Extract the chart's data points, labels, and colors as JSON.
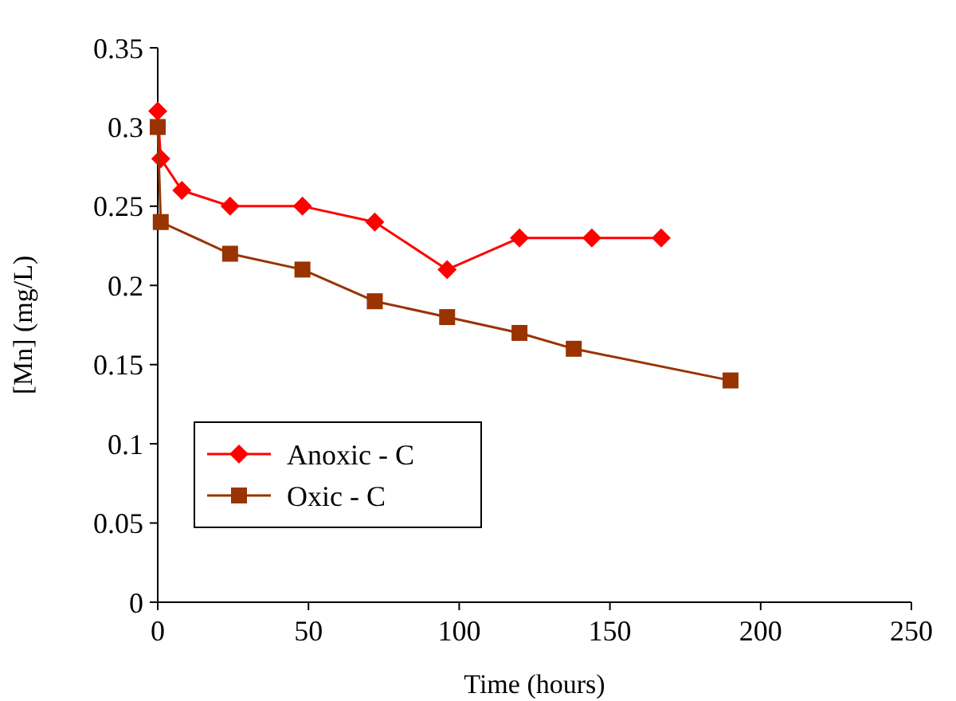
{
  "chart_data": {
    "type": "line",
    "xlabel": "Time (hours)",
    "ylabel": "[Mn] (mg/L)",
    "xlim": [
      0,
      250
    ],
    "xticks": [
      0,
      50,
      100,
      150,
      200,
      250
    ],
    "ylim": [
      0,
      0.35
    ],
    "yticks": [
      0,
      0.05,
      0.1,
      0.15,
      0.2,
      0.25,
      0.3,
      0.35
    ],
    "grid": false,
    "legend": "bottom left",
    "line_style": "solid",
    "series": [
      {
        "name": "Anoxic - C",
        "color": "#ff0000",
        "marker": "diamond",
        "x": [
          0,
          1,
          8,
          24,
          48,
          72,
          96,
          120,
          144,
          167
        ],
        "values": [
          0.31,
          0.28,
          0.26,
          0.25,
          0.25,
          0.24,
          0.21,
          0.23,
          0.23,
          0.23
        ]
      },
      {
        "name": "Oxic - C",
        "color": "#993300",
        "marker": "square",
        "x": [
          0,
          1,
          24,
          48,
          72,
          96,
          120,
          138,
          190
        ],
        "values": [
          0.3,
          0.24,
          0.22,
          0.21,
          0.19,
          0.18,
          0.17,
          0.16,
          0.14
        ]
      }
    ]
  }
}
